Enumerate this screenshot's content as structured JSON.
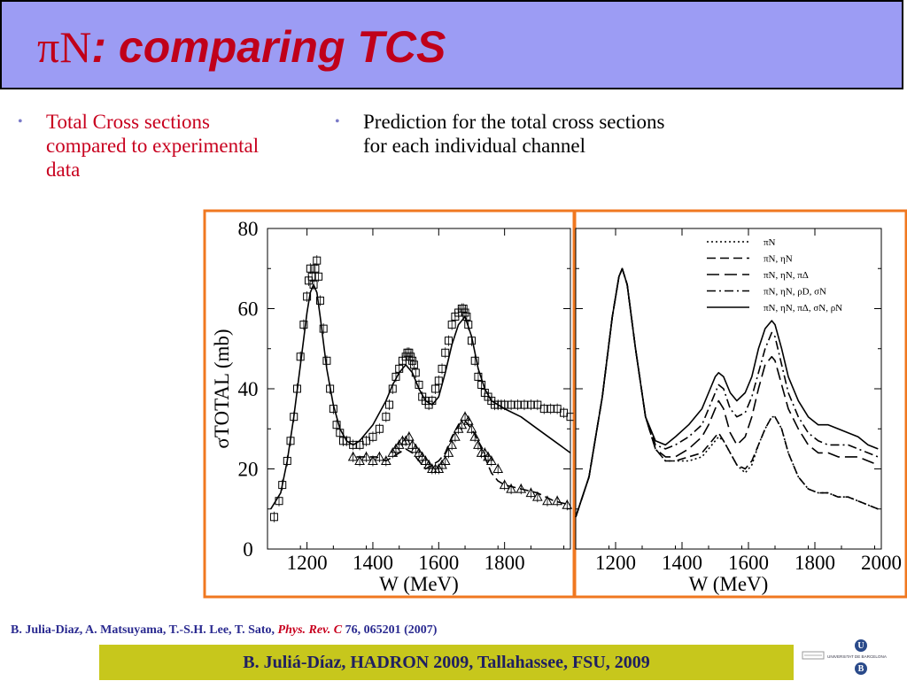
{
  "title": {
    "prefix": "πN",
    "rest": ": comparing TCS"
  },
  "bullets": [
    {
      "text": "Total Cross sections compared to experimental data"
    },
    {
      "text": "Prediction for the total cross sections for each individual channel"
    }
  ],
  "citation": {
    "authors": "B. Julia-Diaz, A. Matsuyama, T.-S.H. Lee, T. Sato, ",
    "journal": "Phys. Rev. C",
    "rest": " 76, 065201 (2007)"
  },
  "footer": "B. Juliá-Díaz, HADRON 2009, Tallahassee, FSU, 2009",
  "logo": {
    "text": "UNIVERSITAT DE BARCELONA",
    "letters": [
      "U",
      "B"
    ]
  },
  "colors": {
    "title_bar": "#9c9cf4",
    "title_text": "#c0001a",
    "frame": "#f07820",
    "footer_bar": "#c7c71c",
    "citation": "#2a2a90"
  },
  "chart_data": [
    {
      "type": "line",
      "xlabel": "W (MeV)",
      "ylabel": "σTOTAL (mb)",
      "xlim": [
        1080,
        2000
      ],
      "ylim": [
        0,
        80
      ],
      "x_ticks": [
        "1200",
        "1400",
        "1600",
        "1800"
      ],
      "y_ticks": [
        "0",
        "20",
        "40",
        "60",
        "80"
      ],
      "series": [
        {
          "style": "solid",
          "x": [
            1090,
            1120,
            1140,
            1160,
            1180,
            1200,
            1210,
            1220,
            1230,
            1240,
            1260,
            1280,
            1300,
            1320,
            1340,
            1360,
            1380,
            1400,
            1420,
            1440,
            1460,
            1480,
            1500,
            1520,
            1540,
            1560,
            1580,
            1600,
            1620,
            1640,
            1660,
            1680,
            1700,
            1720,
            1740,
            1760,
            1800,
            1850,
            1900,
            1950,
            2000
          ],
          "y": [
            10,
            14,
            22,
            33,
            46,
            59,
            64,
            66,
            64,
            58,
            45,
            36,
            30,
            27,
            26,
            27,
            29,
            31,
            34,
            37,
            41,
            44,
            46,
            44,
            40,
            37,
            36,
            38,
            44,
            51,
            56,
            58,
            53,
            45,
            40,
            37,
            35,
            33,
            30,
            27,
            24
          ]
        },
        {
          "style": "dashed",
          "x": [
            1350,
            1380,
            1410,
            1440,
            1460,
            1480,
            1500,
            1520,
            1540,
            1560,
            1580,
            1600,
            1620,
            1640,
            1660,
            1680,
            1700,
            1720,
            1740,
            1760,
            1780,
            1800,
            1850,
            1900,
            1950,
            2000
          ],
          "y": [
            23,
            23,
            23,
            22,
            23,
            24,
            25,
            24,
            22,
            20,
            21,
            22,
            24,
            28,
            31,
            32,
            30,
            27,
            23,
            19,
            17,
            16,
            15,
            14,
            12,
            11
          ]
        }
      ],
      "data_points": [
        {
          "marker": "square",
          "x": [
            1100,
            1115,
            1125,
            1140,
            1150,
            1160,
            1170,
            1180,
            1190,
            1200,
            1205,
            1210,
            1215,
            1220,
            1225,
            1230,
            1235,
            1240,
            1250,
            1260,
            1270,
            1280,
            1290,
            1300,
            1310,
            1320,
            1340,
            1360,
            1380,
            1400,
            1420,
            1440,
            1450,
            1460,
            1470,
            1480,
            1490,
            1500,
            1505,
            1510,
            1515,
            1520,
            1525,
            1530,
            1540,
            1550,
            1560,
            1570,
            1580,
            1590,
            1600,
            1610,
            1620,
            1630,
            1640,
            1650,
            1660,
            1670,
            1675,
            1680,
            1685,
            1690,
            1700,
            1710,
            1720,
            1730,
            1740,
            1750,
            1760,
            1770,
            1780,
            1790,
            1800,
            1820,
            1840,
            1860,
            1880,
            1900,
            1920,
            1940,
            1960,
            1980,
            2000
          ],
          "y": [
            8,
            12,
            16,
            22,
            27,
            33,
            40,
            48,
            56,
            63,
            67,
            70,
            68,
            66,
            70,
            72,
            68,
            62,
            55,
            47,
            40,
            35,
            31,
            29,
            27,
            27,
            26,
            26,
            27,
            28,
            30,
            33,
            36,
            40,
            43,
            45,
            47,
            48,
            49,
            49,
            48,
            47,
            46,
            44,
            41,
            38,
            37,
            36,
            37,
            40,
            42,
            45,
            49,
            52,
            56,
            58,
            59,
            60,
            60,
            59,
            58,
            56,
            52,
            47,
            43,
            41,
            39,
            38,
            37,
            36,
            36,
            36,
            36,
            36,
            36,
            36,
            36,
            36,
            35,
            35,
            35,
            34,
            33
          ]
        },
        {
          "marker": "triangle",
          "x": [
            1340,
            1360,
            1380,
            1400,
            1420,
            1440,
            1460,
            1470,
            1480,
            1490,
            1500,
            1510,
            1520,
            1530,
            1540,
            1550,
            1560,
            1570,
            1580,
            1590,
            1600,
            1610,
            1620,
            1630,
            1640,
            1650,
            1660,
            1670,
            1680,
            1690,
            1700,
            1710,
            1720,
            1730,
            1740,
            1750,
            1760,
            1780,
            1800,
            1820,
            1850,
            1880,
            1900,
            1930,
            1960,
            1990
          ],
          "y": [
            23,
            22,
            23,
            22,
            23,
            22,
            24,
            25,
            26,
            27,
            27,
            28,
            26,
            25,
            24,
            23,
            22,
            21,
            20,
            20,
            20,
            21,
            22,
            24,
            26,
            28,
            30,
            31,
            33,
            32,
            30,
            28,
            26,
            24,
            24,
            23,
            22,
            20,
            16,
            15,
            15,
            14,
            13,
            12,
            12,
            11
          ]
        }
      ]
    },
    {
      "type": "line",
      "xlabel": "W (MeV)",
      "xlim": [
        1080,
        2000
      ],
      "ylim": [
        0,
        80
      ],
      "x_ticks": [
        "1200",
        "1400",
        "1600",
        "1800",
        "2000"
      ],
      "legend_placement": "top-right",
      "series": [
        {
          "name": "πN",
          "style": "dotted",
          "x": [
            1080,
            1120,
            1160,
            1190,
            1210,
            1220,
            1235,
            1260,
            1290,
            1320,
            1350,
            1380,
            1420,
            1460,
            1480,
            1500,
            1510,
            1525,
            1545,
            1565,
            1590,
            1610,
            1630,
            1650,
            1670,
            1680,
            1700,
            1720,
            1750,
            1780,
            1810,
            1840,
            1870,
            1900,
            1930,
            1960,
            1990
          ],
          "y": [
            8,
            18,
            38,
            58,
            68,
            70,
            66,
            50,
            33,
            25,
            22,
            22,
            22,
            23,
            25,
            27,
            28,
            27,
            24,
            21,
            19,
            21,
            26,
            30,
            33,
            33,
            30,
            24,
            18,
            15,
            14,
            14,
            13,
            13,
            12,
            11,
            10
          ]
        },
        {
          "name": "πN, ηN",
          "style": "dashed",
          "x": [
            1080,
            1120,
            1160,
            1190,
            1210,
            1220,
            1235,
            1260,
            1290,
            1320,
            1350,
            1380,
            1420,
            1460,
            1480,
            1500,
            1510,
            1525,
            1545,
            1565,
            1590,
            1610,
            1630,
            1650,
            1670,
            1680,
            1700,
            1720,
            1750,
            1780,
            1810,
            1840,
            1870,
            1900,
            1930,
            1960,
            1990
          ],
          "y": [
            8,
            18,
            38,
            58,
            68,
            70,
            66,
            50,
            33,
            25,
            22,
            22,
            23,
            24,
            26,
            28,
            29,
            27,
            24,
            21,
            20,
            22,
            26,
            30,
            33,
            33,
            30,
            24,
            18,
            15,
            14,
            14,
            13,
            13,
            12,
            11,
            10
          ]
        },
        {
          "name": "πN, ηN, πΔ",
          "style": "long-dash",
          "x": [
            1080,
            1120,
            1160,
            1190,
            1210,
            1220,
            1235,
            1260,
            1290,
            1320,
            1350,
            1380,
            1420,
            1460,
            1480,
            1500,
            1510,
            1525,
            1545,
            1565,
            1590,
            1610,
            1630,
            1650,
            1670,
            1680,
            1700,
            1720,
            1750,
            1780,
            1810,
            1840,
            1870,
            1900,
            1930,
            1960,
            1990
          ],
          "y": [
            8,
            18,
            38,
            58,
            68,
            70,
            66,
            50,
            33,
            25,
            23,
            23,
            25,
            28,
            31,
            35,
            37,
            35,
            29,
            26,
            28,
            33,
            40,
            46,
            48,
            47,
            41,
            35,
            30,
            26,
            24,
            24,
            23,
            23,
            23,
            22,
            21
          ]
        },
        {
          "name": "πN, ηN, ρD, σN",
          "style": "dash-dot",
          "x": [
            1080,
            1120,
            1160,
            1190,
            1210,
            1220,
            1235,
            1260,
            1290,
            1320,
            1350,
            1380,
            1420,
            1460,
            1480,
            1500,
            1510,
            1525,
            1545,
            1565,
            1590,
            1610,
            1630,
            1650,
            1670,
            1680,
            1700,
            1720,
            1750,
            1780,
            1810,
            1840,
            1870,
            1900,
            1930,
            1960,
            1990
          ],
          "y": [
            8,
            18,
            38,
            58,
            68,
            70,
            66,
            50,
            33,
            26,
            25,
            26,
            28,
            31,
            35,
            39,
            41,
            40,
            35,
            33,
            34,
            38,
            44,
            50,
            54,
            53,
            46,
            39,
            33,
            29,
            27,
            26,
            26,
            26,
            25,
            24,
            23
          ]
        },
        {
          "name": "πN, ηN, πΔ, σN, ρN",
          "style": "solid",
          "x": [
            1080,
            1120,
            1160,
            1190,
            1210,
            1220,
            1235,
            1260,
            1290,
            1320,
            1350,
            1380,
            1420,
            1460,
            1480,
            1500,
            1510,
            1525,
            1545,
            1565,
            1590,
            1610,
            1630,
            1650,
            1670,
            1680,
            1700,
            1720,
            1750,
            1780,
            1810,
            1840,
            1870,
            1900,
            1930,
            1960,
            1990
          ],
          "y": [
            8,
            18,
            38,
            58,
            68,
            70,
            66,
            50,
            33,
            27,
            26,
            28,
            31,
            35,
            39,
            43,
            44,
            43,
            39,
            37,
            39,
            43,
            50,
            55,
            57,
            56,
            50,
            43,
            37,
            33,
            31,
            31,
            30,
            29,
            28,
            26,
            25
          ]
        }
      ]
    }
  ]
}
